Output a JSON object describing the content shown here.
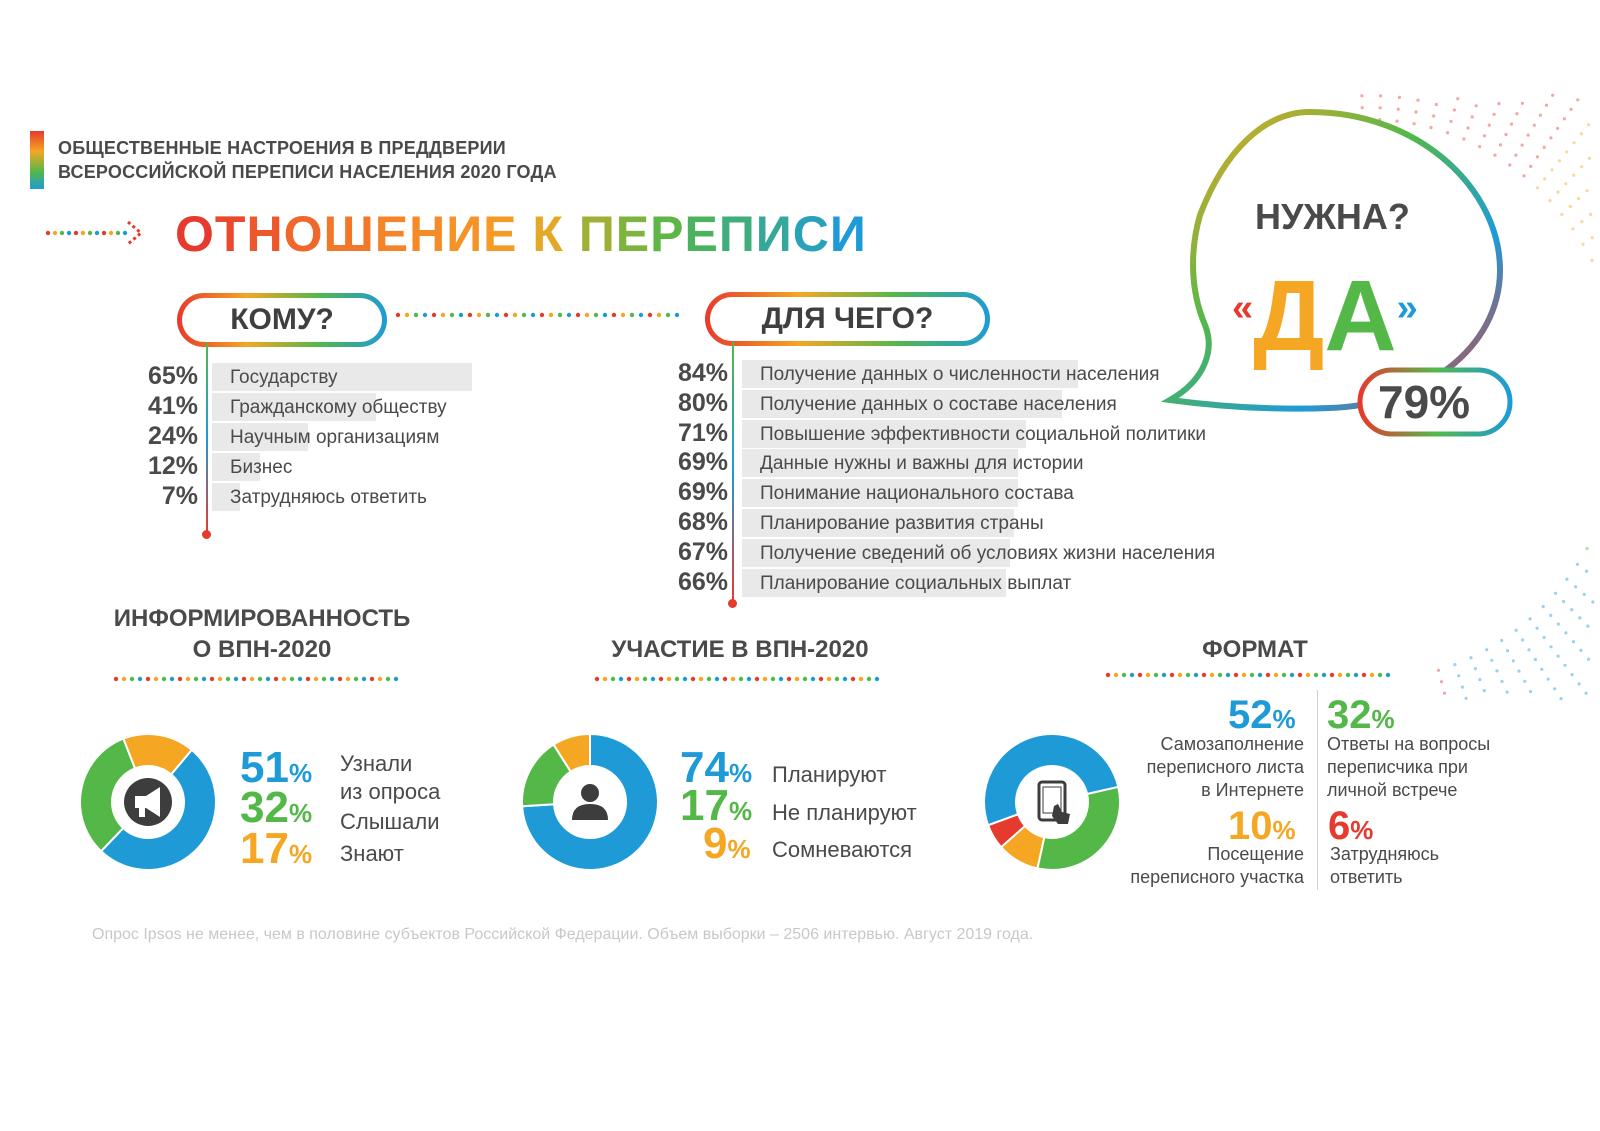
{
  "header": {
    "kicker_line1": "ОБЩЕСТВЕННЫЕ НАСТРОЕНИЯ В ПРЕДДВЕРИИ",
    "kicker_line2": "ВСЕРОССИЙСКОЙ ПЕРЕПИСИ НАСЕЛЕНИЯ 2020 ГОДА",
    "title": "ОТНОШЕНИЕ К ПЕРЕПИСИ"
  },
  "bubble": {
    "question": "НУЖНА?",
    "answer_open": "«",
    "answer": "ДА",
    "answer_close": "»",
    "value_label": "79%"
  },
  "colors": {
    "red": "#e63a2e",
    "orange": "#f5a623",
    "green": "#54b848",
    "blue": "#1e9bd7",
    "bar_bg": "#e9e9e9",
    "text": "#4a4a4a"
  },
  "chart_data": [
    {
      "type": "bar",
      "title": "КОМУ?",
      "categories": [
        "Государству",
        "Гражданскому обществу",
        "Научным организациям",
        "Бизнес",
        "Затрудняюсь ответить"
      ],
      "values": [
        65,
        41,
        24,
        12,
        7
      ],
      "value_labels": [
        "65%",
        "41%",
        "24%",
        "12%",
        "7%"
      ]
    },
    {
      "type": "bar",
      "title": "ДЛЯ ЧЕГО?",
      "categories": [
        "Получение данных о численности населения",
        "Получение данных о составе населения",
        "Повышение эффективности социальной политики",
        "Данные нужны и важны для истории",
        "Понимание национального состава",
        "Планирование развития страны",
        "Получение сведений об условиях жизни населения",
        "Планирование социальных выплат"
      ],
      "values": [
        84,
        80,
        71,
        69,
        69,
        68,
        67,
        66
      ],
      "value_labels": [
        "84%",
        "80%",
        "71%",
        "69%",
        "69%",
        "68%",
        "67%",
        "66%"
      ]
    },
    {
      "type": "pie",
      "title": "ИНФОРМИРОВАННОСТЬ О ВПН-2020",
      "title_line1": "ИНФОРМИРОВАННОСТЬ",
      "title_line2": "О ВПН-2020",
      "icon": "megaphone-icon",
      "slices": [
        {
          "label_line1": "Узнали",
          "label_line2": "из опроса",
          "value": 51,
          "num": "51",
          "color": "#1e9bd7"
        },
        {
          "label_line1": "Слышали",
          "label_line2": "",
          "value": 32,
          "num": "32",
          "color": "#54b848"
        },
        {
          "label_line1": "Знают",
          "label_line2": "",
          "value": 17,
          "num": "17",
          "color": "#f5a623"
        }
      ]
    },
    {
      "type": "pie",
      "title": "УЧАСТИЕ В ВПН-2020",
      "icon": "person-icon",
      "slices": [
        {
          "label": "Планируют",
          "value": 74,
          "num": "74",
          "color": "#1e9bd7"
        },
        {
          "label": "Не планируют",
          "value": 17,
          "num": "17",
          "color": "#54b848"
        },
        {
          "label": "Сомневаются",
          "value": 9,
          "num": "9",
          "color": "#f5a623"
        }
      ]
    },
    {
      "type": "pie",
      "title": "ФОРМАТ",
      "icon": "tablet-icon",
      "slices": [
        {
          "label_line1": "Самозаполнение",
          "label_line2": "переписного листа",
          "label_line3": "в Интернете",
          "value": 52,
          "num": "52",
          "color": "#1e9bd7"
        },
        {
          "label_line1": "Ответы на вопросы",
          "label_line2": "переписчика при",
          "label_line3": "личной встрече",
          "value": 32,
          "num": "32",
          "color": "#54b848"
        },
        {
          "label_line1": "Посещение",
          "label_line2": "переписного участка",
          "label_line3": "",
          "value": 10,
          "num": "10",
          "color": "#f5a623"
        },
        {
          "label_line1": "Затрудняюсь",
          "label_line2": "ответить",
          "label_line3": "",
          "value": 6,
          "num": "6",
          "color": "#e63a2e"
        }
      ]
    }
  ],
  "pct_sign": "%",
  "footer": {
    "source": "Опрос Ipsos не менее, чем в половине субъектов Российской Федерации. Объем выборки – 2506 интервью. Август 2019 года."
  }
}
